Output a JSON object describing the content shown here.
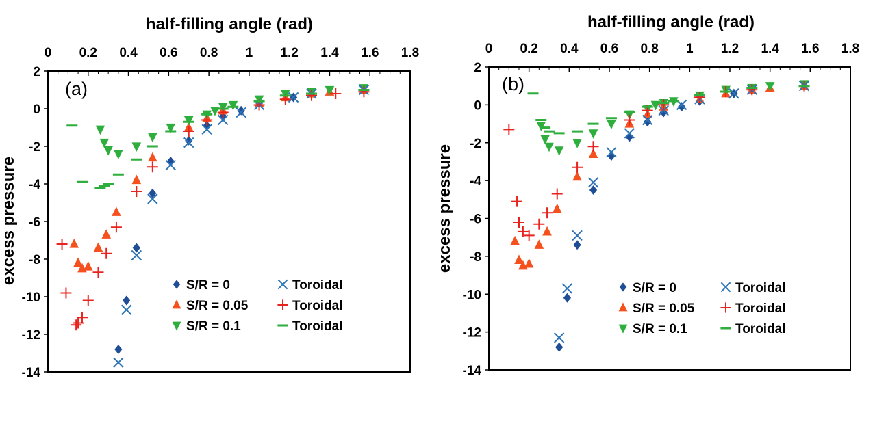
{
  "chart_data": [
    {
      "type": "scatter",
      "panel_label": "(a)",
      "xlabel": "half-filling angle (rad)",
      "ylabel": "excess pressure",
      "xlim": [
        0,
        1.8
      ],
      "ylim": [
        -14,
        2
      ],
      "x_ticks": [
        "0",
        "0.2",
        "0.4",
        "0.6",
        "0.8",
        "1",
        "1.2",
        "1.4",
        "1.6",
        "1.8"
      ],
      "y_ticks": [
        "2",
        "0",
        "-2",
        "-4",
        "-6",
        "-8",
        "-10",
        "-12",
        "-14"
      ],
      "legend_position": "bottom-right",
      "series": [
        {
          "name": "S/R = 0",
          "marker": "diamond",
          "color": "#1f4e96",
          "points": [
            [
              0.35,
              -12.8
            ],
            [
              0.39,
              -10.2
            ],
            [
              0.44,
              -7.4
            ],
            [
              0.52,
              -4.5
            ],
            [
              0.61,
              -2.8
            ],
            [
              0.7,
              -1.7
            ],
            [
              0.79,
              -0.9
            ],
            [
              0.87,
              -0.4
            ],
            [
              0.96,
              -0.1
            ],
            [
              1.05,
              0.3
            ],
            [
              1.22,
              0.6
            ],
            [
              1.31,
              0.8
            ],
            [
              1.57,
              1.0
            ]
          ]
        },
        {
          "name": "Toroidal",
          "marker": "x",
          "color": "#2e75b6",
          "points": [
            [
              0.35,
              -13.5
            ],
            [
              0.39,
              -10.7
            ],
            [
              0.44,
              -7.8
            ],
            [
              0.52,
              -4.8
            ],
            [
              0.61,
              -3.0
            ],
            [
              0.7,
              -1.8
            ],
            [
              0.79,
              -1.1
            ],
            [
              0.87,
              -0.6
            ],
            [
              0.96,
              -0.2
            ],
            [
              1.05,
              0.2
            ],
            [
              1.22,
              0.6
            ],
            [
              1.31,
              0.8
            ],
            [
              1.57,
              1.0
            ]
          ]
        },
        {
          "name": "S/R = 0.05",
          "marker": "triangle-up",
          "color": "#f4511e",
          "points": [
            [
              0.13,
              -7.2
            ],
            [
              0.15,
              -8.2
            ],
            [
              0.17,
              -8.5
            ],
            [
              0.2,
              -8.4
            ],
            [
              0.25,
              -7.4
            ],
            [
              0.29,
              -6.7
            ],
            [
              0.34,
              -5.5
            ],
            [
              0.44,
              -3.8
            ],
            [
              0.52,
              -2.6
            ],
            [
              0.7,
              -1.0
            ],
            [
              0.79,
              -0.5
            ],
            [
              0.87,
              -0.1
            ],
            [
              1.05,
              0.3
            ],
            [
              1.18,
              0.6
            ],
            [
              1.31,
              0.8
            ],
            [
              1.4,
              0.9
            ],
            [
              1.57,
              1.0
            ]
          ]
        },
        {
          "name": "Toroidal",
          "marker": "plus",
          "color": "#e8231d",
          "points": [
            [
              0.07,
              -7.2
            ],
            [
              0.09,
              -9.8
            ],
            [
              0.14,
              -11.5
            ],
            [
              0.15,
              -11.4
            ],
            [
              0.17,
              -11.1
            ],
            [
              0.2,
              -10.2
            ],
            [
              0.25,
              -8.7
            ],
            [
              0.29,
              -7.7
            ],
            [
              0.34,
              -6.3
            ],
            [
              0.44,
              -4.4
            ],
            [
              0.52,
              -3.1
            ],
            [
              0.7,
              -1.2
            ],
            [
              0.79,
              -0.6
            ],
            [
              0.87,
              -0.2
            ],
            [
              1.05,
              0.2
            ],
            [
              1.18,
              0.5
            ],
            [
              1.31,
              0.7
            ],
            [
              1.43,
              0.8
            ],
            [
              1.57,
              0.9
            ]
          ]
        },
        {
          "name": "S/R = 0.1",
          "marker": "triangle-down",
          "color": "#2eae3c",
          "points": [
            [
              0.26,
              -1.1
            ],
            [
              0.28,
              -1.8
            ],
            [
              0.3,
              -2.2
            ],
            [
              0.35,
              -2.4
            ],
            [
              0.44,
              -2.0
            ],
            [
              0.52,
              -1.5
            ],
            [
              0.61,
              -1.0
            ],
            [
              0.7,
              -0.6
            ],
            [
              0.79,
              -0.3
            ],
            [
              0.83,
              -0.1
            ],
            [
              0.87,
              0.1
            ],
            [
              0.92,
              0.2
            ],
            [
              1.05,
              0.5
            ],
            [
              1.18,
              0.8
            ],
            [
              1.31,
              0.9
            ],
            [
              1.4,
              1.0
            ],
            [
              1.57,
              1.1
            ]
          ]
        },
        {
          "name": "Toroidal",
          "marker": "dash",
          "color": "#2eae3c",
          "points": [
            [
              0.12,
              -0.9
            ],
            [
              0.17,
              -3.9
            ],
            [
              0.26,
              -4.2
            ],
            [
              0.28,
              -4.1
            ],
            [
              0.3,
              -4.0
            ],
            [
              0.35,
              -3.5
            ],
            [
              0.44,
              -2.7
            ],
            [
              0.52,
              -2.0
            ],
            [
              0.61,
              -1.2
            ],
            [
              0.7,
              -0.7
            ],
            [
              0.79,
              -0.3
            ],
            [
              0.87,
              0.0
            ],
            [
              0.92,
              0.1
            ],
            [
              1.05,
              0.4
            ],
            [
              1.18,
              0.7
            ],
            [
              1.31,
              0.8
            ],
            [
              1.57,
              1.0
            ]
          ]
        }
      ]
    },
    {
      "type": "scatter",
      "panel_label": "(b)",
      "xlabel": "half-filling angle (rad)",
      "ylabel": "excess pressure",
      "xlim": [
        0,
        1.8
      ],
      "ylim": [
        -14,
        2
      ],
      "x_ticks": [
        "0",
        "0.2",
        "0.4",
        "0.6",
        "0.8",
        "1",
        "1.2",
        "1.4",
        "1.6",
        "1.8"
      ],
      "y_ticks": [
        "2",
        "0",
        "-2",
        "-4",
        "-6",
        "-8",
        "-10",
        "-12",
        "-14"
      ],
      "legend_position": "bottom-right",
      "series": [
        {
          "name": "S/R = 0",
          "marker": "diamond",
          "color": "#1f4e96",
          "points": [
            [
              0.35,
              -12.8
            ],
            [
              0.39,
              -10.2
            ],
            [
              0.44,
              -7.4
            ],
            [
              0.52,
              -4.5
            ],
            [
              0.61,
              -2.7
            ],
            [
              0.7,
              -1.7
            ],
            [
              0.79,
              -0.9
            ],
            [
              0.87,
              -0.4
            ],
            [
              0.96,
              -0.1
            ],
            [
              1.05,
              0.2
            ],
            [
              1.22,
              0.6
            ],
            [
              1.31,
              0.8
            ],
            [
              1.57,
              1.0
            ]
          ]
        },
        {
          "name": "Toroidal",
          "marker": "x",
          "color": "#2e75b6",
          "points": [
            [
              0.35,
              -12.3
            ],
            [
              0.39,
              -9.7
            ],
            [
              0.44,
              -6.9
            ],
            [
              0.52,
              -4.1
            ],
            [
              0.61,
              -2.5
            ],
            [
              0.7,
              -1.5
            ],
            [
              0.79,
              -0.8
            ],
            [
              0.87,
              -0.3
            ],
            [
              0.96,
              0.0
            ],
            [
              1.05,
              0.3
            ],
            [
              1.22,
              0.6
            ],
            [
              1.31,
              0.8
            ],
            [
              1.57,
              1.0
            ]
          ]
        },
        {
          "name": "S/R = 0.05",
          "marker": "triangle-up",
          "color": "#f4511e",
          "points": [
            [
              0.13,
              -7.2
            ],
            [
              0.15,
              -8.2
            ],
            [
              0.17,
              -8.5
            ],
            [
              0.2,
              -8.4
            ],
            [
              0.25,
              -7.4
            ],
            [
              0.29,
              -6.7
            ],
            [
              0.34,
              -5.5
            ],
            [
              0.44,
              -3.8
            ],
            [
              0.52,
              -2.6
            ],
            [
              0.7,
              -1.0
            ],
            [
              0.79,
              -0.5
            ],
            [
              0.87,
              -0.1
            ],
            [
              1.05,
              0.3
            ],
            [
              1.18,
              0.6
            ],
            [
              1.31,
              0.8
            ],
            [
              1.4,
              0.9
            ],
            [
              1.57,
              1.0
            ]
          ]
        },
        {
          "name": "Toroidal",
          "marker": "plus",
          "color": "#e8231d",
          "points": [
            [
              0.1,
              -1.3
            ],
            [
              0.14,
              -5.1
            ],
            [
              0.15,
              -6.2
            ],
            [
              0.17,
              -6.7
            ],
            [
              0.2,
              -6.9
            ],
            [
              0.25,
              -6.3
            ],
            [
              0.29,
              -5.7
            ],
            [
              0.34,
              -4.7
            ],
            [
              0.44,
              -3.3
            ],
            [
              0.52,
              -2.2
            ],
            [
              0.7,
              -0.8
            ],
            [
              0.79,
              -0.3
            ],
            [
              0.87,
              0.0
            ],
            [
              1.05,
              0.4
            ],
            [
              1.18,
              0.7
            ],
            [
              1.31,
              0.8
            ],
            [
              1.57,
              1.0
            ]
          ]
        },
        {
          "name": "S/R = 0.1",
          "marker": "triangle-down",
          "color": "#2eae3c",
          "points": [
            [
              0.26,
              -1.1
            ],
            [
              0.28,
              -1.8
            ],
            [
              0.3,
              -2.2
            ],
            [
              0.35,
              -2.4
            ],
            [
              0.44,
              -2.0
            ],
            [
              0.52,
              -1.5
            ],
            [
              0.61,
              -1.0
            ],
            [
              0.7,
              -0.5
            ],
            [
              0.79,
              -0.2
            ],
            [
              0.83,
              0.0
            ],
            [
              0.87,
              0.1
            ],
            [
              0.92,
              0.2
            ],
            [
              1.05,
              0.5
            ],
            [
              1.18,
              0.8
            ],
            [
              1.31,
              0.9
            ],
            [
              1.4,
              1.0
            ],
            [
              1.57,
              1.1
            ]
          ]
        },
        {
          "name": "Toroidal",
          "marker": "dash",
          "color": "#2eae3c",
          "points": [
            [
              0.22,
              0.6
            ],
            [
              0.26,
              -0.8
            ],
            [
              0.28,
              -1.2
            ],
            [
              0.3,
              -1.4
            ],
            [
              0.35,
              -1.5
            ],
            [
              0.44,
              -1.4
            ],
            [
              0.52,
              -1.0
            ],
            [
              0.61,
              -0.7
            ],
            [
              0.7,
              -0.4
            ],
            [
              0.79,
              -0.1
            ],
            [
              0.87,
              0.1
            ],
            [
              0.92,
              0.2
            ],
            [
              1.05,
              0.5
            ],
            [
              1.18,
              0.7
            ],
            [
              1.31,
              0.9
            ],
            [
              1.57,
              1.0
            ]
          ]
        }
      ]
    }
  ]
}
